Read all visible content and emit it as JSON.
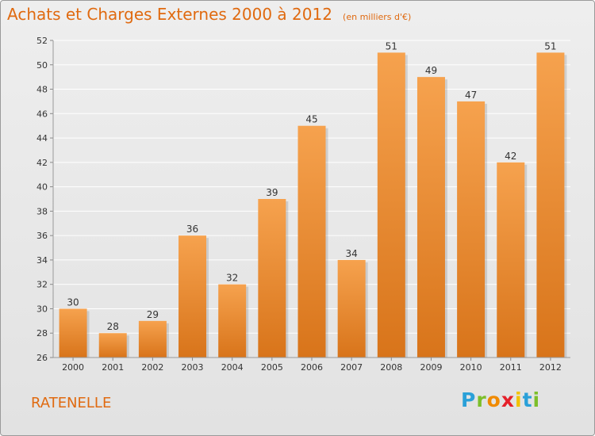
{
  "chart_data": {
    "type": "bar",
    "title": "Achats et Charges Externes 2000 à 2012",
    "subtitle": "(en milliers d'€)",
    "categories": [
      "2000",
      "2001",
      "2002",
      "2003",
      "2004",
      "2005",
      "2006",
      "2007",
      "2008",
      "2009",
      "2010",
      "2011",
      "2012"
    ],
    "values": [
      30,
      28,
      29,
      36,
      32,
      39,
      45,
      34,
      51,
      49,
      47,
      42,
      51
    ],
    "ylim": [
      26,
      52
    ],
    "yticks": [
      26,
      28,
      30,
      32,
      34,
      36,
      38,
      40,
      42,
      44,
      46,
      48,
      50,
      52
    ],
    "grid": true,
    "bar_color": "#f08a28"
  },
  "commune": "RATENELLE",
  "logo": "Proxiti"
}
